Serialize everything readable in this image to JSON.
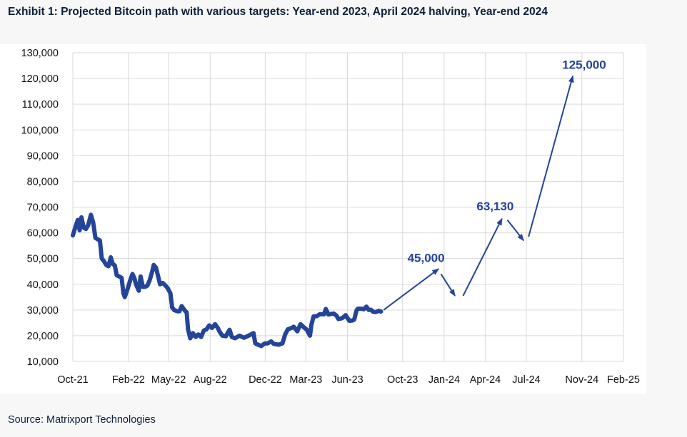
{
  "title": "Exhibit 1: Projected Bitcoin path with various targets: Year-end 2023, April 2024 halving, Year-end 2024",
  "source": "Source: Matrixport Technologies",
  "colors": {
    "line": "#24449a",
    "annotation": "#24449a",
    "grid": "#d9d9d9"
  },
  "chart_data": {
    "type": "line",
    "title": "",
    "xlabel": "",
    "ylabel": "",
    "grid": true,
    "legend": "none",
    "ylim": [
      10000,
      130000
    ],
    "xlim": [
      "2021-10-01",
      "2025-02-01"
    ],
    "x_ticks": [
      "Oct-21",
      "Feb-22",
      "May-22",
      "Aug-22",
      "Dec-22",
      "Mar-23",
      "Jun-23",
      "Oct-23",
      "Jan-24",
      "Apr-24",
      "Jul-24",
      "Nov-24",
      "Feb-25"
    ],
    "x_tick_dates": [
      "2021-10-01",
      "2022-02-01",
      "2022-05-01",
      "2022-08-01",
      "2022-12-01",
      "2023-03-01",
      "2023-06-01",
      "2023-10-01",
      "2024-01-01",
      "2024-04-01",
      "2024-07-01",
      "2024-11-01",
      "2025-02-01"
    ],
    "y_ticks": [
      10000,
      20000,
      30000,
      40000,
      50000,
      60000,
      70000,
      80000,
      90000,
      100000,
      110000,
      120000,
      130000
    ],
    "y_tick_labels": [
      "10,000",
      "20,000",
      "30,000",
      "40,000",
      "50,000",
      "60,000",
      "70,000",
      "80,000",
      "90,000",
      "100,000",
      "110,000",
      "120,000",
      "130,000"
    ],
    "series": [
      {
        "points": [
          [
            "2021-10-01",
            59000
          ],
          [
            "2021-10-07",
            62500
          ],
          [
            "2021-10-12",
            65000
          ],
          [
            "2021-10-16",
            61000
          ],
          [
            "2021-10-20",
            66000
          ],
          [
            "2021-10-25",
            62000
          ],
          [
            "2021-10-30",
            61500
          ],
          [
            "2021-11-04",
            63000
          ],
          [
            "2021-11-10",
            67000
          ],
          [
            "2021-11-15",
            64000
          ],
          [
            "2021-11-20",
            58000
          ],
          [
            "2021-11-25",
            57500
          ],
          [
            "2021-11-30",
            57000
          ],
          [
            "2021-12-04",
            50000
          ],
          [
            "2021-12-09",
            49000
          ],
          [
            "2021-12-14",
            47500
          ],
          [
            "2021-12-19",
            47000
          ],
          [
            "2021-12-24",
            50500
          ],
          [
            "2021-12-28",
            48000
          ],
          [
            "2022-01-02",
            47300
          ],
          [
            "2022-01-06",
            43500
          ],
          [
            "2022-01-12",
            43000
          ],
          [
            "2022-01-17",
            42500
          ],
          [
            "2022-01-21",
            36500
          ],
          [
            "2022-01-24",
            35000
          ],
          [
            "2022-01-29",
            37500
          ],
          [
            "2022-02-04",
            41000
          ],
          [
            "2022-02-10",
            44000
          ],
          [
            "2022-02-14",
            42500
          ],
          [
            "2022-02-18",
            40000
          ],
          [
            "2022-02-24",
            37500
          ],
          [
            "2022-02-28",
            43000
          ],
          [
            "2022-03-05",
            39000
          ],
          [
            "2022-03-10",
            39000
          ],
          [
            "2022-03-15",
            39500
          ],
          [
            "2022-03-20",
            41500
          ],
          [
            "2022-03-25",
            44500
          ],
          [
            "2022-03-29",
            47500
          ],
          [
            "2022-04-03",
            46500
          ],
          [
            "2022-04-08",
            43000
          ],
          [
            "2022-04-12",
            40000
          ],
          [
            "2022-04-18",
            40500
          ],
          [
            "2022-04-24",
            39500
          ],
          [
            "2022-04-29",
            38500
          ],
          [
            "2022-05-05",
            36500
          ],
          [
            "2022-05-09",
            31000
          ],
          [
            "2022-05-13",
            30000
          ],
          [
            "2022-05-20",
            29500
          ],
          [
            "2022-05-25",
            29500
          ],
          [
            "2022-05-30",
            31500
          ],
          [
            "2022-06-05",
            30000
          ],
          [
            "2022-06-10",
            29000
          ],
          [
            "2022-06-13",
            22500
          ],
          [
            "2022-06-18",
            19000
          ],
          [
            "2022-06-24",
            21000
          ],
          [
            "2022-06-30",
            19500
          ],
          [
            "2022-07-06",
            20500
          ],
          [
            "2022-07-12",
            19500
          ],
          [
            "2022-07-18",
            22000
          ],
          [
            "2022-07-24",
            22500
          ],
          [
            "2022-07-30",
            24000
          ],
          [
            "2022-08-05",
            23000
          ],
          [
            "2022-08-12",
            24500
          ],
          [
            "2022-08-18",
            23000
          ],
          [
            "2022-08-22",
            21500
          ],
          [
            "2022-08-28",
            20000
          ],
          [
            "2022-09-05",
            19800
          ],
          [
            "2022-09-10",
            21500
          ],
          [
            "2022-09-13",
            22300
          ],
          [
            "2022-09-18",
            19500
          ],
          [
            "2022-09-25",
            19000
          ],
          [
            "2022-10-05",
            20000
          ],
          [
            "2022-10-15",
            19200
          ],
          [
            "2022-10-25",
            20000
          ],
          [
            "2022-11-05",
            21000
          ],
          [
            "2022-11-09",
            17000
          ],
          [
            "2022-11-15",
            16500
          ],
          [
            "2022-11-22",
            16000
          ],
          [
            "2022-11-30",
            17000
          ],
          [
            "2022-12-06",
            17000
          ],
          [
            "2022-12-14",
            17800
          ],
          [
            "2022-12-20",
            16800
          ],
          [
            "2022-12-31",
            16500
          ],
          [
            "2023-01-08",
            17000
          ],
          [
            "2023-01-14",
            20500
          ],
          [
            "2023-01-20",
            22500
          ],
          [
            "2023-01-28",
            23000
          ],
          [
            "2023-02-02",
            23500
          ],
          [
            "2023-02-10",
            21700
          ],
          [
            "2023-02-17",
            24500
          ],
          [
            "2023-02-25",
            23200
          ],
          [
            "2023-03-03",
            22300
          ],
          [
            "2023-03-10",
            20000
          ],
          [
            "2023-03-13",
            24200
          ],
          [
            "2023-03-18",
            27500
          ],
          [
            "2023-03-25",
            27600
          ],
          [
            "2023-04-01",
            28400
          ],
          [
            "2023-04-10",
            28300
          ],
          [
            "2023-04-14",
            30400
          ],
          [
            "2023-04-20",
            28200
          ],
          [
            "2023-04-26",
            28500
          ],
          [
            "2023-05-02",
            28600
          ],
          [
            "2023-05-08",
            27700
          ],
          [
            "2023-05-12",
            26500
          ],
          [
            "2023-05-20",
            26800
          ],
          [
            "2023-05-28",
            28000
          ],
          [
            "2023-06-05",
            25800
          ],
          [
            "2023-06-12",
            25900
          ],
          [
            "2023-06-16",
            26300
          ],
          [
            "2023-06-21",
            29800
          ],
          [
            "2023-06-24",
            30500
          ],
          [
            "2023-07-01",
            30500
          ],
          [
            "2023-07-07",
            30300
          ],
          [
            "2023-07-13",
            31300
          ],
          [
            "2023-07-18",
            30000
          ],
          [
            "2023-07-23",
            30100
          ],
          [
            "2023-07-28",
            29300
          ],
          [
            "2023-08-03",
            29200
          ],
          [
            "2023-08-09",
            29700
          ],
          [
            "2023-08-14",
            29400
          ]
        ]
      }
    ],
    "projection_arrows": [
      {
        "from": [
          "2023-08-20",
          30000
        ],
        "to": [
          "2023-12-20",
          46000
        ]
      },
      {
        "from": [
          "2023-12-25",
          44000
        ],
        "to": [
          "2024-01-25",
          35500
        ]
      },
      {
        "from": [
          "2024-02-12",
          35500
        ],
        "to": [
          "2024-05-08",
          65500
        ]
      },
      {
        "from": [
          "2024-05-20",
          65000
        ],
        "to": [
          "2024-06-25",
          57000
        ]
      },
      {
        "from": [
          "2024-07-06",
          58500
        ],
        "to": [
          "2024-10-12",
          121000
        ]
      }
    ],
    "annotations": [
      {
        "text": "45,000",
        "x": "2023-11-22",
        "y": 48600
      },
      {
        "text": "63,130",
        "x": "2024-04-23",
        "y": 68700
      },
      {
        "text": "125,000",
        "x": "2024-11-06",
        "y": 123700
      }
    ]
  }
}
